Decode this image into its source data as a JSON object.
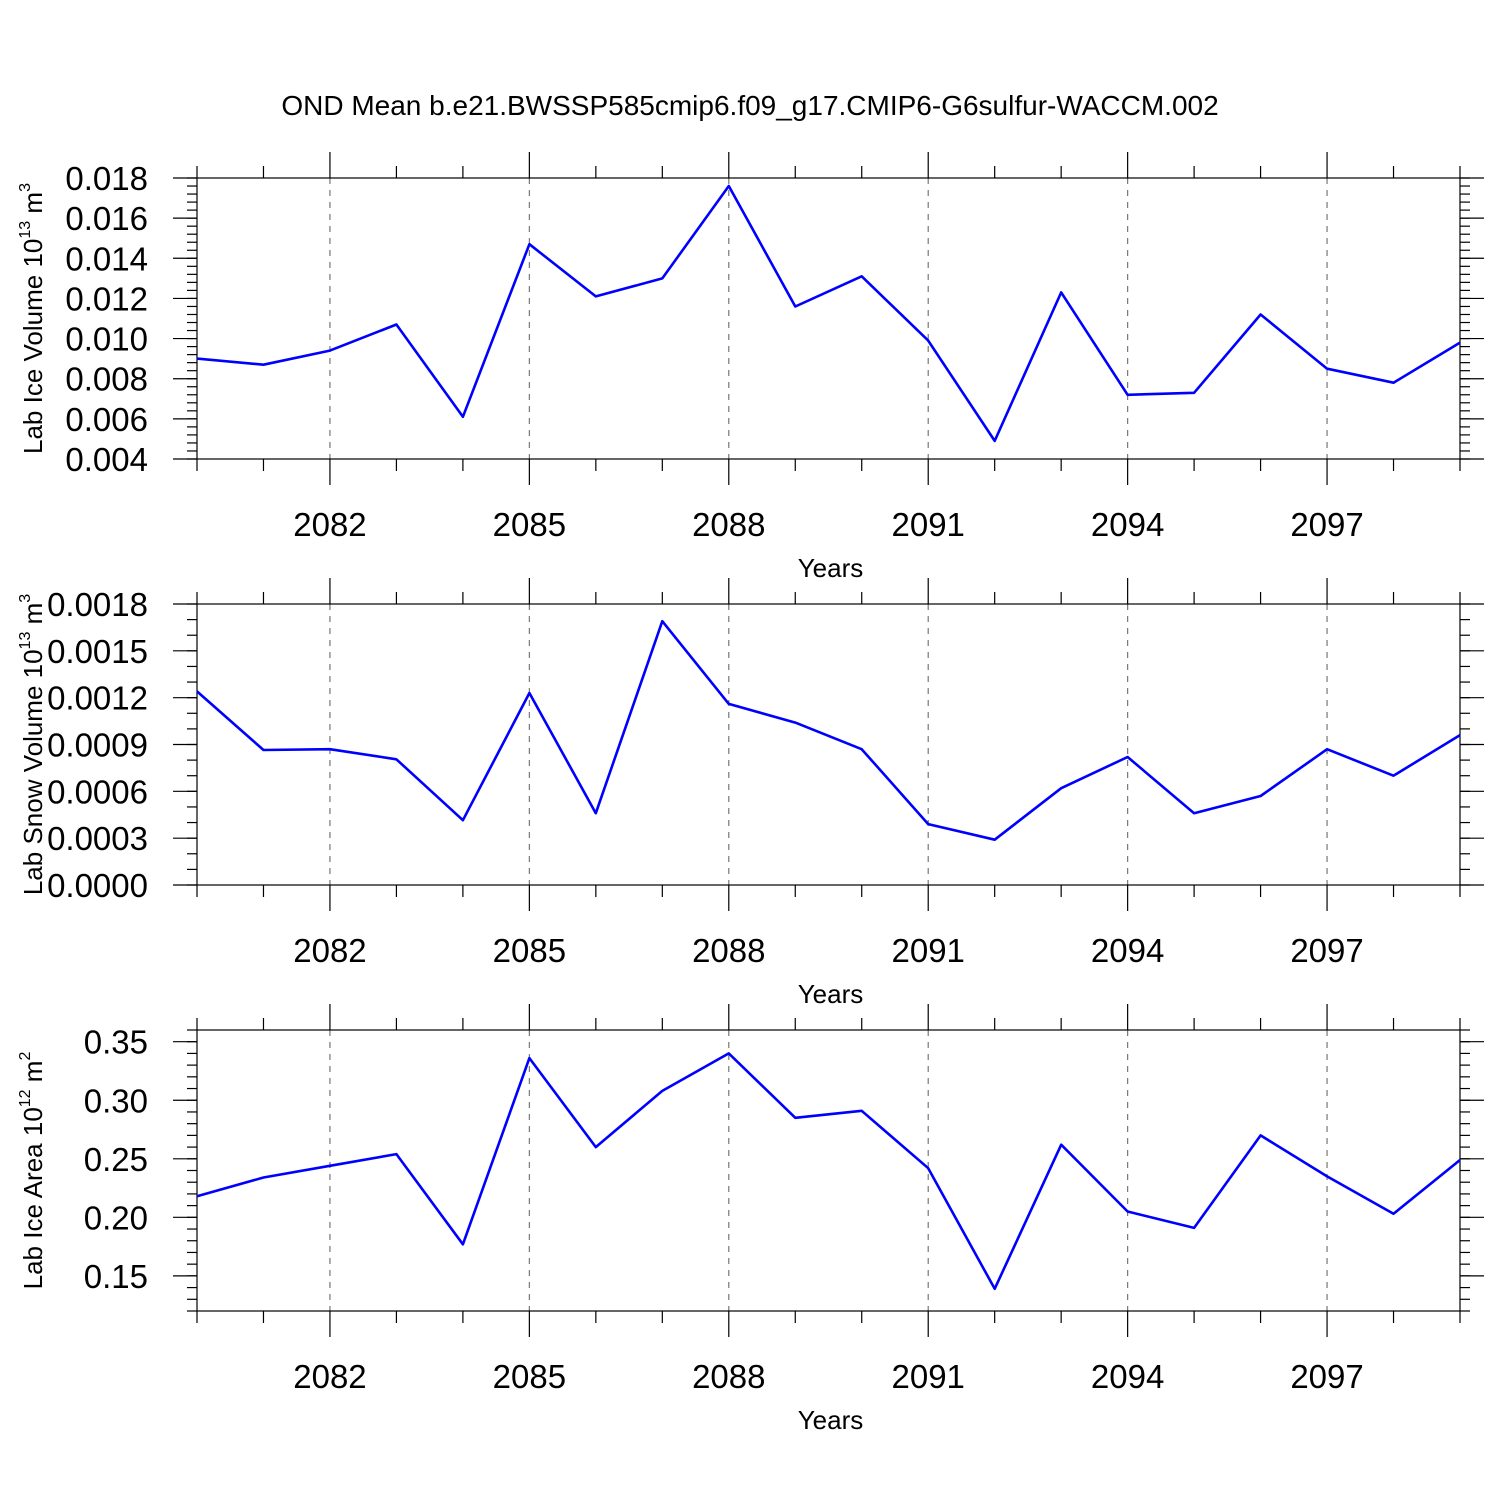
{
  "figure": {
    "title": "OND Mean b.e21.BWSSP585cmip6.f09_g17.CMIP6-G6sulfur-WACCM.002"
  },
  "chart_data": [
    {
      "type": "line",
      "ylabel": "Lab Ice Volume 10",
      "ylabel_sup": "13",
      "ylabel_unit": "m",
      "ylabel_unit_sup": "3",
      "xlabel": "Years",
      "xlim": [
        2080,
        2099
      ],
      "ylim": [
        0.004,
        0.018
      ],
      "x_ticks": [
        2082,
        2085,
        2088,
        2091,
        2094,
        2097
      ],
      "y_ticks": [
        0.004,
        0.006,
        0.008,
        0.01,
        0.012,
        0.014,
        0.016,
        0.018
      ],
      "y_tick_labels": [
        "0.004",
        "0.006",
        "0.008",
        "0.010",
        "0.012",
        "0.014",
        "0.016",
        "0.018"
      ],
      "y_minor_step": 0.0004,
      "grid": "vertical dashed at major x ticks",
      "series": [
        {
          "color": "#0000ff",
          "x": [
            2080,
            2081,
            2082,
            2083,
            2084,
            2085,
            2086,
            2087,
            2088,
            2089,
            2090,
            2091,
            2092,
            2093,
            2094,
            2095,
            2096,
            2097,
            2098,
            2099
          ],
          "y": [
            0.009,
            0.0087,
            0.0094,
            0.0107,
            0.0061,
            0.0147,
            0.0121,
            0.013,
            0.0176,
            0.0116,
            0.0131,
            0.0099,
            0.0049,
            0.0123,
            0.0072,
            0.0073,
            0.0112,
            0.0085,
            0.0078,
            0.0098
          ]
        }
      ]
    },
    {
      "type": "line",
      "ylabel": "Lab Snow Volume 10",
      "ylabel_sup": "13",
      "ylabel_unit": "m",
      "ylabel_unit_sup": "3",
      "xlabel": "Years",
      "xlim": [
        2080,
        2099
      ],
      "ylim": [
        0.0,
        0.0018
      ],
      "x_ticks": [
        2082,
        2085,
        2088,
        2091,
        2094,
        2097
      ],
      "y_ticks": [
        0.0,
        0.0003,
        0.0006,
        0.0009,
        0.0012,
        0.0015,
        0.0018
      ],
      "y_tick_labels": [
        "0.0000",
        "0.0003",
        "0.0006",
        "0.0009",
        "0.0012",
        "0.0015",
        "0.0018"
      ],
      "y_minor_step": 0.0001,
      "grid": "vertical dashed at major x ticks",
      "series": [
        {
          "color": "#0000ff",
          "x": [
            2080,
            2081,
            2082,
            2083,
            2084,
            2085,
            2086,
            2087,
            2088,
            2089,
            2090,
            2091,
            2092,
            2093,
            2094,
            2095,
            2096,
            2097,
            2098,
            2099
          ],
          "y": [
            0.00124,
            0.000865,
            0.00087,
            0.000805,
            0.000415,
            0.00123,
            0.00046,
            0.00169,
            0.00116,
            0.00104,
            0.00087,
            0.00039,
            0.00029,
            0.00062,
            0.00082,
            0.00046,
            0.00057,
            0.00087,
            0.0007,
            0.00096
          ]
        }
      ]
    },
    {
      "type": "line",
      "ylabel": "Lab Ice Area 10",
      "ylabel_sup": "12",
      "ylabel_unit": "m",
      "ylabel_unit_sup": "2",
      "xlabel": "Years",
      "xlim": [
        2080,
        2099
      ],
      "ylim": [
        0.12,
        0.36
      ],
      "x_ticks": [
        2082,
        2085,
        2088,
        2091,
        2094,
        2097
      ],
      "y_ticks": [
        0.15,
        0.2,
        0.25,
        0.3,
        0.35
      ],
      "y_tick_labels": [
        "0.15",
        "0.20",
        "0.25",
        "0.30",
        "0.35"
      ],
      "y_minor_step": 0.01,
      "grid": "vertical dashed at major x ticks",
      "series": [
        {
          "color": "#0000ff",
          "x": [
            2080,
            2081,
            2082,
            2083,
            2084,
            2085,
            2086,
            2087,
            2088,
            2089,
            2090,
            2091,
            2092,
            2093,
            2094,
            2095,
            2096,
            2097,
            2098,
            2099
          ],
          "y": [
            0.218,
            0.234,
            0.244,
            0.254,
            0.177,
            0.336,
            0.26,
            0.308,
            0.34,
            0.285,
            0.291,
            0.242,
            0.139,
            0.262,
            0.205,
            0.191,
            0.27,
            0.235,
            0.203,
            0.249
          ]
        }
      ]
    }
  ]
}
